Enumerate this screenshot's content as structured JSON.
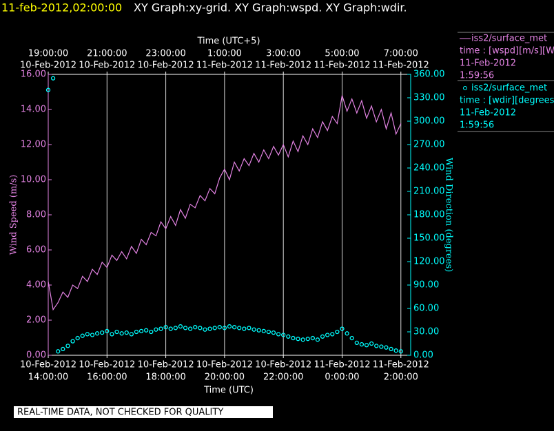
{
  "header": {
    "timestamp": "11-feb-2012,02:00:00",
    "graphs": "XY Graph:xy-grid.  XY Graph:wspd.  XY Graph:wdir."
  },
  "chart_data": {
    "type": "xy",
    "xlabel": "Time (UTC)",
    "x2label": "Time (UTC+5)",
    "ylabel": "Wind Speed (m/s)",
    "y2label": "Wind Direction (degrees)",
    "grid": "x",
    "xlim": [
      "2012-02-10 14:00",
      "2012-02-11 02:20"
    ],
    "xticks": [
      {
        "value": "2012-02-10 14:00",
        "label": [
          "10-Feb-2012",
          "14:00:00"
        ]
      },
      {
        "value": "2012-02-10 16:00",
        "label": [
          "10-Feb-2012",
          "16:00:00"
        ]
      },
      {
        "value": "2012-02-10 18:00",
        "label": [
          "10-Feb-2012",
          "18:00:00"
        ]
      },
      {
        "value": "2012-02-10 20:00",
        "label": [
          "10-Feb-2012",
          "20:00:00"
        ]
      },
      {
        "value": "2012-02-10 22:00",
        "label": [
          "10-Feb-2012",
          "22:00:00"
        ]
      },
      {
        "value": "2012-02-11 00:00",
        "label": [
          "11-Feb-2012",
          "0:00:00"
        ]
      },
      {
        "value": "2012-02-11 02:00",
        "label": [
          "11-Feb-2012",
          "2:00:00"
        ]
      }
    ],
    "x2ticks": [
      {
        "value": "2012-02-10 14:00",
        "label": [
          "19:00:00",
          "10-Feb-2012"
        ]
      },
      {
        "value": "2012-02-10 16:00",
        "label": [
          "21:00:00",
          "10-Feb-2012"
        ]
      },
      {
        "value": "2012-02-10 18:00",
        "label": [
          "23:00:00",
          "10-Feb-2012"
        ]
      },
      {
        "value": "2012-02-10 20:00",
        "label": [
          "1:00:00",
          "11-Feb-2012"
        ]
      },
      {
        "value": "2012-02-10 22:00",
        "label": [
          "3:00:00",
          "11-Feb-2012"
        ]
      },
      {
        "value": "2012-02-11 00:00",
        "label": [
          "5:00:00",
          "11-Feb-2012"
        ]
      },
      {
        "value": "2012-02-11 02:00",
        "label": [
          "7:00:00",
          "11-Feb-2012"
        ]
      }
    ],
    "ylim": [
      0,
      16
    ],
    "yticks": [
      {
        "value": 0,
        "label": "0.00"
      },
      {
        "value": 2,
        "label": "2.00"
      },
      {
        "value": 4,
        "label": "4.00"
      },
      {
        "value": 6,
        "label": "6.00"
      },
      {
        "value": 8,
        "label": "8.00"
      },
      {
        "value": 10,
        "label": "10.00"
      },
      {
        "value": 12,
        "label": "12.00"
      },
      {
        "value": 14,
        "label": "14.00"
      },
      {
        "value": 16,
        "label": "16.00"
      }
    ],
    "y2lim": [
      0,
      360
    ],
    "y2ticks": [
      {
        "value": 0,
        "label": "0.00"
      },
      {
        "value": 30,
        "label": "30.00"
      },
      {
        "value": 60,
        "label": "60.00"
      },
      {
        "value": 90,
        "label": "90.00"
      },
      {
        "value": 120,
        "label": "120.00"
      },
      {
        "value": 150,
        "label": "150.00"
      },
      {
        "value": 180,
        "label": "180.00"
      },
      {
        "value": 210,
        "label": "210.00"
      },
      {
        "value": 240,
        "label": "240.00"
      },
      {
        "value": 270,
        "label": "270.00"
      },
      {
        "value": 300,
        "label": "300.00"
      },
      {
        "value": 330,
        "label": "330.00"
      },
      {
        "value": 360,
        "label": "360.00"
      }
    ],
    "x": [
      "2012-02-10 14:00",
      "2012-02-10 14:10",
      "2012-02-10 14:20",
      "2012-02-10 14:30",
      "2012-02-10 14:40",
      "2012-02-10 14:50",
      "2012-02-10 15:00",
      "2012-02-10 15:10",
      "2012-02-10 15:20",
      "2012-02-10 15:30",
      "2012-02-10 15:40",
      "2012-02-10 15:50",
      "2012-02-10 16:00",
      "2012-02-10 16:10",
      "2012-02-10 16:20",
      "2012-02-10 16:30",
      "2012-02-10 16:40",
      "2012-02-10 16:50",
      "2012-02-10 17:00",
      "2012-02-10 17:10",
      "2012-02-10 17:20",
      "2012-02-10 17:30",
      "2012-02-10 17:40",
      "2012-02-10 17:50",
      "2012-02-10 18:00",
      "2012-02-10 18:10",
      "2012-02-10 18:20",
      "2012-02-10 18:30",
      "2012-02-10 18:40",
      "2012-02-10 18:50",
      "2012-02-10 19:00",
      "2012-02-10 19:10",
      "2012-02-10 19:20",
      "2012-02-10 19:30",
      "2012-02-10 19:40",
      "2012-02-10 19:50",
      "2012-02-10 20:00",
      "2012-02-10 20:10",
      "2012-02-10 20:20",
      "2012-02-10 20:30",
      "2012-02-10 20:40",
      "2012-02-10 20:50",
      "2012-02-10 21:00",
      "2012-02-10 21:10",
      "2012-02-10 21:20",
      "2012-02-10 21:30",
      "2012-02-10 21:40",
      "2012-02-10 21:50",
      "2012-02-10 22:00",
      "2012-02-10 22:10",
      "2012-02-10 22:20",
      "2012-02-10 22:30",
      "2012-02-10 22:40",
      "2012-02-10 22:50",
      "2012-02-10 23:00",
      "2012-02-10 23:10",
      "2012-02-10 23:20",
      "2012-02-10 23:30",
      "2012-02-10 23:40",
      "2012-02-10 23:50",
      "2012-02-11 00:00",
      "2012-02-11 00:10",
      "2012-02-11 00:20",
      "2012-02-11 00:30",
      "2012-02-11 00:40",
      "2012-02-11 00:50",
      "2012-02-11 01:00",
      "2012-02-11 01:10",
      "2012-02-11 01:20",
      "2012-02-11 01:30",
      "2012-02-11 01:40",
      "2012-02-11 01:50",
      "2012-02-11 02:00"
    ],
    "series": [
      {
        "name": "iss2/surface_met",
        "legend": [
          "time : [wspd][m/s][Wind",
          "11-Feb-2012",
          "1:59:56"
        ],
        "style": "line",
        "color": "#e383e3",
        "values": [
          4.2,
          2.6,
          3.0,
          3.6,
          3.3,
          4.0,
          3.8,
          4.5,
          4.2,
          4.9,
          4.6,
          5.3,
          5.0,
          5.7,
          5.4,
          5.9,
          5.5,
          6.2,
          5.8,
          6.6,
          6.3,
          7.0,
          6.8,
          7.6,
          7.2,
          7.9,
          7.4,
          8.3,
          7.8,
          8.6,
          8.4,
          9.1,
          8.8,
          9.5,
          9.2,
          10.1,
          10.6,
          10.0,
          11.0,
          10.5,
          11.2,
          10.8,
          11.5,
          11.0,
          11.7,
          11.2,
          11.9,
          11.4,
          12.0,
          11.3,
          12.2,
          11.6,
          12.5,
          12.0,
          12.9,
          12.4,
          13.3,
          12.8,
          13.6,
          13.2,
          14.8,
          13.9,
          14.6,
          13.8,
          14.5,
          13.5,
          14.2,
          13.3,
          14.0,
          12.9,
          13.8,
          12.6,
          13.2
        ]
      },
      {
        "name": "iss2/surface_met",
        "legend": [
          "time : [wdir][degrees][V",
          "11-Feb-2012",
          "1:59:56"
        ],
        "style": "markers",
        "axis": "y2",
        "color": "#00ffff",
        "values": [
          340,
          355,
          5,
          8,
          12,
          18,
          22,
          25,
          27,
          26,
          28,
          29,
          31,
          27,
          30,
          28,
          29,
          27,
          30,
          31,
          32,
          30,
          33,
          34,
          36,
          34,
          35,
          37,
          35,
          34,
          36,
          35,
          33,
          34,
          35,
          36,
          35,
          37,
          36,
          35,
          34,
          35,
          33,
          32,
          31,
          30,
          29,
          27,
          26,
          24,
          22,
          21,
          20,
          21,
          22,
          20,
          24,
          26,
          27,
          30,
          34,
          28,
          22,
          16,
          14,
          13,
          15,
          12,
          11,
          10,
          8,
          6,
          5
        ]
      }
    ]
  },
  "footer": "REAL-TIME DATA, NOT CHECKED FOR QUALITY"
}
